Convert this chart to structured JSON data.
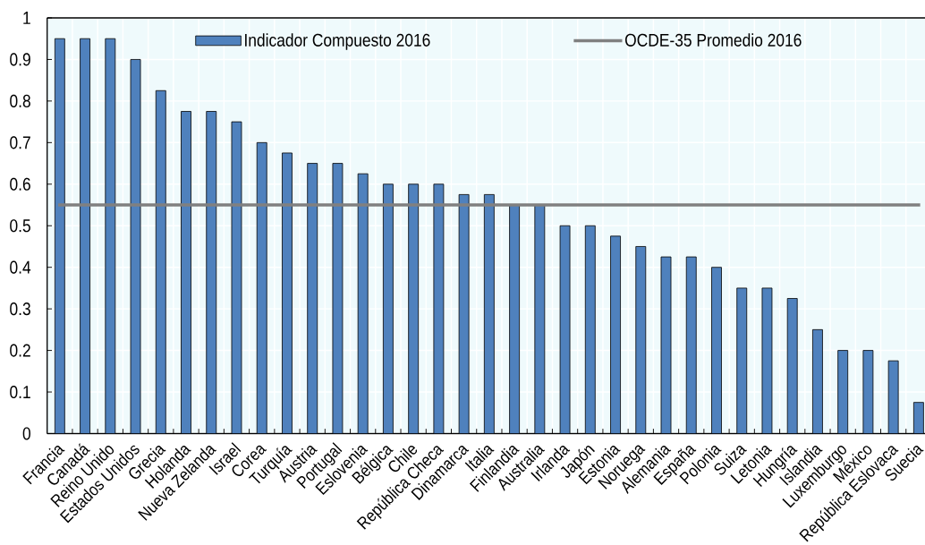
{
  "chart_data": {
    "type": "bar",
    "categories": [
      "Francia",
      "Canadá",
      "Reino Unido",
      "Estados Unidos",
      "Grecia",
      "Holanda",
      "Nueva Zelanda",
      "Israel",
      "Corea",
      "Turquía",
      "Austria",
      "Portugal",
      "Eslovenia",
      "Bélgica",
      "Chile",
      "República Checa",
      "Dinamarca",
      "Italia",
      "Finlandia",
      "Australia",
      "Irlanda",
      "Japón",
      "Estonia",
      "Noruega",
      "Alemania",
      "España",
      "Polonia",
      "Suiza",
      "Letonia",
      "Hungría",
      "Islandia",
      "Luxemburgo",
      "México",
      "República Eslovaca",
      "Suecia"
    ],
    "series": [
      {
        "name": "Indicador Compuesto 2016",
        "color": "#4f81bd",
        "values": [
          0.95,
          0.95,
          0.95,
          0.9,
          0.825,
          0.775,
          0.775,
          0.75,
          0.7,
          0.675,
          0.65,
          0.65,
          0.625,
          0.6,
          0.6,
          0.6,
          0.575,
          0.575,
          0.55,
          0.55,
          0.5,
          0.5,
          0.475,
          0.45,
          0.425,
          0.425,
          0.4,
          0.35,
          0.35,
          0.325,
          0.25,
          0.2,
          0.2,
          0.175,
          0.075
        ]
      }
    ],
    "ref_lines": [
      {
        "axis": "y",
        "value": 0.55,
        "label": "OCDE-35 Promedio 2016",
        "color": "#808080"
      }
    ],
    "ylim": [
      0,
      1
    ],
    "yticks": [
      0,
      0.1,
      0.2,
      0.3,
      0.4,
      0.5,
      0.6,
      0.7,
      0.8,
      0.9,
      1
    ],
    "grid": true,
    "legend": "top"
  }
}
